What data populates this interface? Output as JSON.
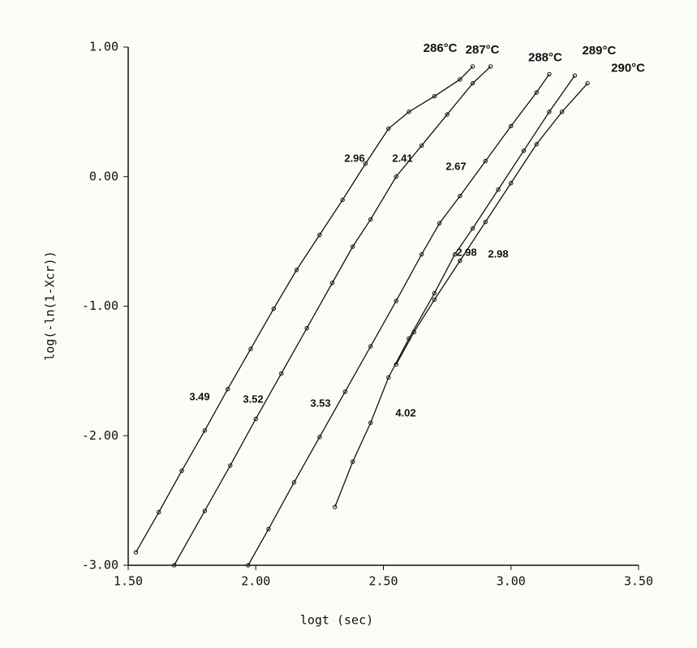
{
  "chart_data": {
    "type": "line",
    "x_label": "logt (sec)",
    "y_label": "log(-ln(1-Xcr))",
    "xlim": [
      1.5,
      3.5
    ],
    "ylim": [
      -3,
      1
    ],
    "xticks": [
      {
        "value": 1.5,
        "label": "1.50"
      },
      {
        "value": 2,
        "label": "2.00"
      },
      {
        "value": 2.5,
        "label": "2.50"
      },
      {
        "value": 3,
        "label": "3.00"
      },
      {
        "value": 3.5,
        "label": "3.50"
      }
    ],
    "yticks": [
      {
        "value": -3,
        "label": "-3.00"
      },
      {
        "value": -2,
        "label": "-2.00"
      },
      {
        "value": -1,
        "label": "-1.00"
      },
      {
        "value": 0,
        "label": "0.00"
      },
      {
        "value": 1,
        "label": "1.00"
      }
    ],
    "series": [
      {
        "name": "286°C",
        "color": "#111111",
        "x": [
          1.53,
          1.62,
          1.71,
          1.8,
          1.89,
          1.98,
          2.07,
          2.16,
          2.25,
          2.34,
          2.43,
          2.52,
          2.6,
          2.7,
          2.8,
          2.85
        ],
        "values": [
          -2.9,
          -2.59,
          -2.27,
          -1.96,
          -1.64,
          -1.33,
          -1.02,
          -0.72,
          -0.45,
          -0.18,
          0.1,
          0.37,
          0.5,
          0.62,
          0.75,
          0.85
        ]
      },
      {
        "name": "287°C",
        "color": "#111111",
        "x": [
          1.68,
          1.8,
          1.9,
          2.0,
          2.1,
          2.2,
          2.3,
          2.38,
          2.45,
          2.55,
          2.65,
          2.75,
          2.85,
          2.92
        ],
        "values": [
          -3,
          -2.58,
          -2.23,
          -1.87,
          -1.52,
          -1.17,
          -0.82,
          -0.54,
          -0.33,
          0,
          0.24,
          0.48,
          0.72,
          0.85
        ]
      },
      {
        "name": "288°C",
        "color": "#111111",
        "x": [
          1.97,
          2.05,
          2.15,
          2.25,
          2.35,
          2.45,
          2.55,
          2.65,
          2.72,
          2.8,
          2.9,
          3.0,
          3.1,
          3.15
        ],
        "values": [
          -3,
          -2.72,
          -2.36,
          -2.01,
          -1.66,
          -1.31,
          -0.96,
          -0.6,
          -0.36,
          -0.15,
          0.12,
          0.39,
          0.65,
          0.79
        ]
      },
      {
        "name": "289°C",
        "color": "#111111",
        "x": [
          2.31,
          2.38,
          2.45,
          2.52,
          2.6,
          2.7,
          2.78,
          2.85,
          2.95,
          3.05,
          3.15,
          3.25
        ],
        "values": [
          -2.55,
          -2.2,
          -1.9,
          -1.55,
          -1.25,
          -0.9,
          -0.6,
          -0.4,
          -0.1,
          0.2,
          0.5,
          0.78
        ]
      },
      {
        "name": "290°C",
        "color": "#111111",
        "x": [
          2.55,
          2.62,
          2.7,
          2.8,
          2.9,
          3.0,
          3.1,
          3.2,
          3.3
        ],
        "values": [
          -1.45,
          -1.2,
          -0.95,
          -0.65,
          -0.35,
          -0.05,
          0.25,
          0.5,
          0.72
        ]
      }
    ],
    "annotations": [
      "2.96",
      "2.41",
      "2.67",
      "2.98",
      "2.98",
      "3.49",
      "3.52",
      "3.53",
      "4.02"
    ]
  }
}
